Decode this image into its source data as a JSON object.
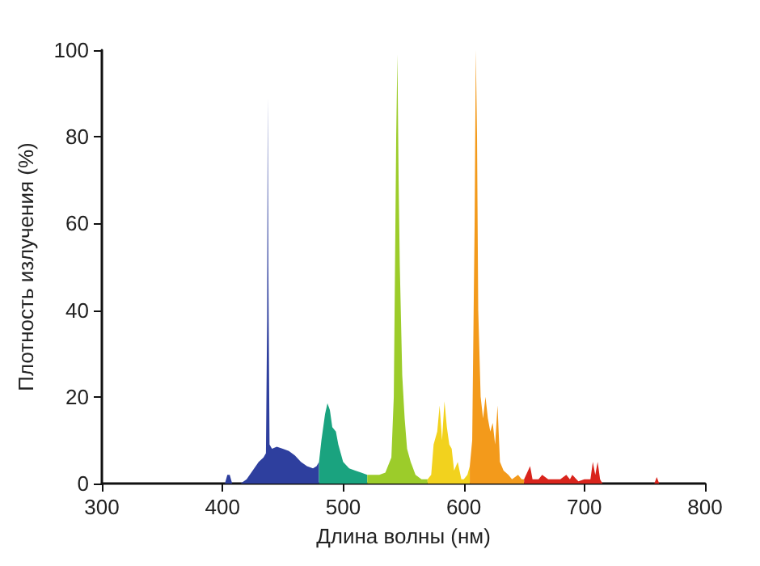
{
  "chart_data": {
    "type": "area",
    "xlabel": "Длина волны (нм)",
    "ylabel": "Плотность излучения (%)",
    "xlim": [
      300,
      800
    ],
    "xticks": [
      300,
      400,
      500,
      600,
      700,
      800
    ],
    "ylim": [
      0,
      100
    ],
    "yticks": [
      0,
      20,
      40,
      60,
      80,
      100
    ],
    "grid": false,
    "series": [
      {
        "color": "#2e3f9e",
        "x": [
          400,
          402,
          404,
          406,
          408,
          415,
          420,
          425,
          430,
          434,
          436,
          437,
          437.5,
          438,
          439,
          441,
          445,
          450,
          455,
          460,
          465,
          470,
          475,
          478,
          480
        ],
        "values": [
          0,
          0,
          2,
          2,
          0,
          0,
          1,
          3,
          5,
          6,
          7,
          38,
          89,
          50,
          9,
          8,
          8.5,
          8,
          7.5,
          6.5,
          5,
          4,
          3.5,
          4,
          5
        ]
      },
      {
        "color": "#1aa37f",
        "x": [
          480,
          482,
          485,
          487,
          489,
          491,
          494,
          496,
          500,
          505,
          510,
          515,
          520
        ],
        "values": [
          5,
          10,
          16,
          18.5,
          17,
          13,
          12,
          9,
          5,
          3.5,
          3,
          2.5,
          2
        ]
      },
      {
        "color": "#9ccc2a",
        "x": [
          520,
          525,
          530,
          535,
          540,
          542,
          543,
          544,
          545,
          546,
          547,
          549,
          551,
          553,
          556,
          560,
          565,
          570
        ],
        "values": [
          2,
          2,
          2,
          2.5,
          6,
          20,
          50,
          80,
          99,
          70,
          50,
          25,
          15,
          8,
          5,
          2,
          1,
          1
        ]
      },
      {
        "color": "#f2d21e",
        "x": [
          570,
          573,
          575,
          578,
          580,
          582,
          584,
          586,
          588,
          590,
          592,
          595,
          598,
          600,
          603,
          605
        ],
        "values": [
          1,
          2,
          9,
          12,
          18,
          10,
          19,
          13,
          9,
          8,
          3,
          5,
          1,
          1,
          2,
          4
        ]
      },
      {
        "color": "#f39a1b",
        "x": [
          605,
          607,
          609,
          610,
          611,
          612,
          614,
          616,
          618,
          620,
          622,
          624,
          626,
          628,
          630,
          633,
          637,
          640,
          645,
          648,
          650
        ],
        "values": [
          4,
          10,
          60,
          100,
          80,
          40,
          20,
          15,
          20,
          15,
          12,
          14,
          9,
          18,
          5,
          3,
          2,
          1,
          2,
          1,
          1
        ]
      },
      {
        "color": "#d9241c",
        "x": [
          650,
          655,
          657,
          662,
          665,
          670,
          675,
          680,
          685,
          688,
          690,
          695,
          700,
          705,
          707,
          709,
          711,
          713,
          715,
          758,
          760,
          762
        ],
        "values": [
          1,
          4,
          1,
          1,
          2,
          1,
          1,
          1,
          2,
          1,
          2,
          0.5,
          1,
          1,
          5,
          2,
          5,
          1,
          0,
          0,
          1.5,
          0
        ]
      }
    ]
  }
}
